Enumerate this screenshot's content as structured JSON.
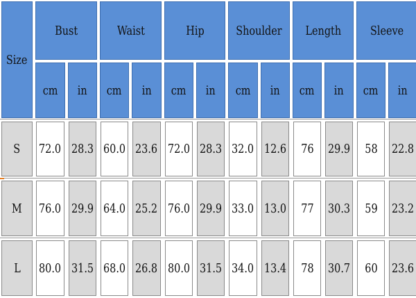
{
  "table": {
    "size_label": "Size",
    "groups": [
      "Bust",
      "Waist",
      "Hip",
      "Shoulder",
      "Length",
      "Sleeve"
    ],
    "units": [
      "cm",
      "in"
    ],
    "rows": [
      {
        "size": "S",
        "values": [
          "72.0",
          "28.3",
          "60.0",
          "23.6",
          "72.0",
          "28.3",
          "32.0",
          "12.6",
          "76",
          "29.9",
          "58",
          "22.8"
        ]
      },
      {
        "size": "M",
        "values": [
          "76.0",
          "29.9",
          "64.0",
          "25.2",
          "76.0",
          "29.9",
          "33.0",
          "13.0",
          "77",
          "30.3",
          "59",
          "23.2"
        ]
      },
      {
        "size": "L",
        "values": [
          "80.0",
          "31.5",
          "68.0",
          "26.8",
          "80.0",
          "31.5",
          "34.0",
          "13.4",
          "78",
          "30.7",
          "60",
          "23.6"
        ]
      }
    ]
  },
  "colors": {
    "header": "#5a8fd6",
    "cell_gray": "#d9d9d9",
    "cell_white": "#ffffff",
    "accent": "#e67e22"
  }
}
